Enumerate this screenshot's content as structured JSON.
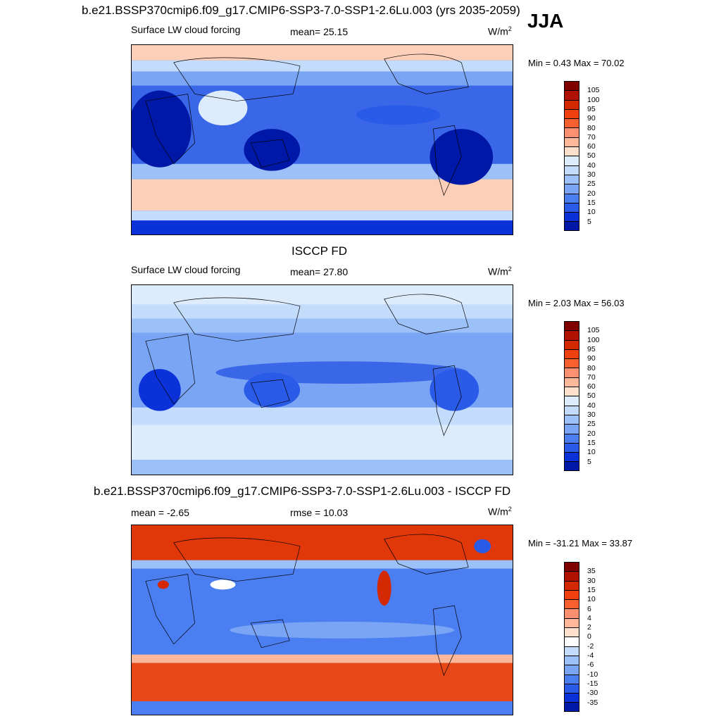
{
  "header": {
    "main_title": "b.e21.BSSP370cmip6.f09_g17.CMIP6-SSP3-7.0-SSP1-2.6Lu.003 (yrs 2035-2059)",
    "season": "JJA"
  },
  "panels": [
    {
      "title": "",
      "left_label": "Surface LW cloud forcing",
      "center_label": "mean=  25.15",
      "units_base": "W/m",
      "units_exp": "2",
      "minmax": "Min =   0.43 Max =  70.02",
      "colorbar": {
        "labels": [
          "105",
          "100",
          "95",
          "90",
          "80",
          "70",
          "60",
          "50",
          "40",
          "30",
          "25",
          "20",
          "15",
          "10",
          "5"
        ],
        "colors": [
          "#800000",
          "#b01000",
          "#d42800",
          "#f04010",
          "#f86030",
          "#fc9070",
          "#fcb898",
          "#fde0cc",
          "#dcecfc",
          "#c4dcfc",
          "#9cc0f8",
          "#7aa4f4",
          "#4b7ef0",
          "#2a5ae8",
          "#0a32d8",
          "#0018a8"
        ]
      }
    },
    {
      "title": "ISCCP FD",
      "left_label": "Surface LW cloud forcing",
      "center_label": "mean=  27.80",
      "units_base": "W/m",
      "units_exp": "2",
      "minmax": "Min =   2.03 Max =  56.03",
      "colorbar": {
        "labels": [
          "105",
          "100",
          "95",
          "90",
          "80",
          "70",
          "60",
          "50",
          "40",
          "30",
          "25",
          "20",
          "15",
          "10",
          "5"
        ],
        "colors": [
          "#800000",
          "#b01000",
          "#d42800",
          "#f04010",
          "#f86030",
          "#fc9070",
          "#fcb898",
          "#fde0cc",
          "#dcecfc",
          "#c4dcfc",
          "#9cc0f8",
          "#7aa4f4",
          "#4b7ef0",
          "#2a5ae8",
          "#0a32d8",
          "#0018a8"
        ]
      }
    },
    {
      "title": "b.e21.BSSP370cmip6.f09_g17.CMIP6-SSP3-7.0-SSP1-2.6Lu.003 - ISCCP FD",
      "left_label": "mean =  -2.65",
      "center_label": "rmse =  10.03",
      "units_base": "W/m",
      "units_exp": "2",
      "minmax": "Min = -31.21 Max =  33.87",
      "colorbar": {
        "labels": [
          "35",
          "30",
          "15",
          "10",
          "6",
          "4",
          "2",
          "0",
          "-2",
          "-4",
          "-6",
          "-10",
          "-15",
          "-30",
          "-35"
        ],
        "colors": [
          "#800000",
          "#b01000",
          "#d42800",
          "#f04010",
          "#f86030",
          "#fc9070",
          "#fcb898",
          "#fde0cc",
          "#ffffff",
          "#c4dcfc",
          "#9cc0f8",
          "#7aa4f4",
          "#4b7ef0",
          "#2a5ae8",
          "#0a32d8",
          "#0018a8"
        ]
      }
    }
  ]
}
